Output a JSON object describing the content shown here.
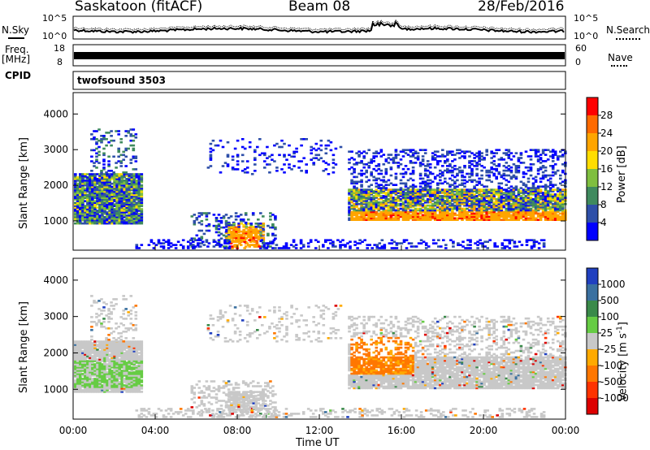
{
  "header": {
    "station": "Saskatoon (fitACF)",
    "beam": "Beam 08",
    "date": "28/Feb/2016"
  },
  "side_labels": {
    "nsky": "N.Sky",
    "freq_top": "Freq.",
    "freq_unit": "[MHz]",
    "cpid": "CPID",
    "nsearch": "N.Search",
    "nave": "Nave"
  },
  "noise_panel": {
    "left_top": "10^5",
    "left_bottom": "10^0",
    "right_top": "10^5",
    "right_bottom": "10^0"
  },
  "freq_panel": {
    "left_top": "18",
    "left_bottom": "8",
    "right_top": "60",
    "right_bottom": "0"
  },
  "cpid_text": "twofsound 3503",
  "colors": {
    "power_scale": [
      "#0000ff",
      "#2e4fa8",
      "#3f8a5e",
      "#7fbf3f",
      "#ffdd00",
      "#ffa500",
      "#ff6a00",
      "#ff0000"
    ],
    "velocity_scale": [
      "#2040c0",
      "#3a70a0",
      "#3a8a4a",
      "#66cc44",
      "#c8c8c8",
      "#ffaa00",
      "#ff7700",
      "#ff3300",
      "#dd0000"
    ]
  },
  "chart_data": [
    {
      "type": "heatmap",
      "panel": "power",
      "ylabel": "Slant Range [km]",
      "ylim": [
        180,
        4600
      ],
      "yticks": [
        "1000",
        "2000",
        "3000",
        "4000"
      ],
      "xlim": [
        "00:00",
        "24:00"
      ],
      "colorbar": {
        "label": "Power [dB]",
        "ticks": [
          "4",
          "8",
          "12",
          "16",
          "20",
          "24",
          "28"
        ],
        "range": [
          0,
          32
        ]
      }
    },
    {
      "type": "heatmap",
      "panel": "velocity",
      "ylabel": "Slant Range [km]",
      "ylim": [
        180,
        4600
      ],
      "yticks": [
        "1000",
        "2000",
        "3000",
        "4000"
      ],
      "xlabel": "Time UT",
      "xticks": [
        "00:00",
        "04:00",
        "08:00",
        "12:00",
        "16:00",
        "20:00",
        "00:00"
      ],
      "colorbar": {
        "label": "Velocity [m s",
        "label_sup": "-1",
        "label_end": "]",
        "ticks": [
          "1000",
          "500",
          "100",
          "25",
          "-25",
          "-100",
          "-500",
          "-1000"
        ]
      }
    }
  ]
}
